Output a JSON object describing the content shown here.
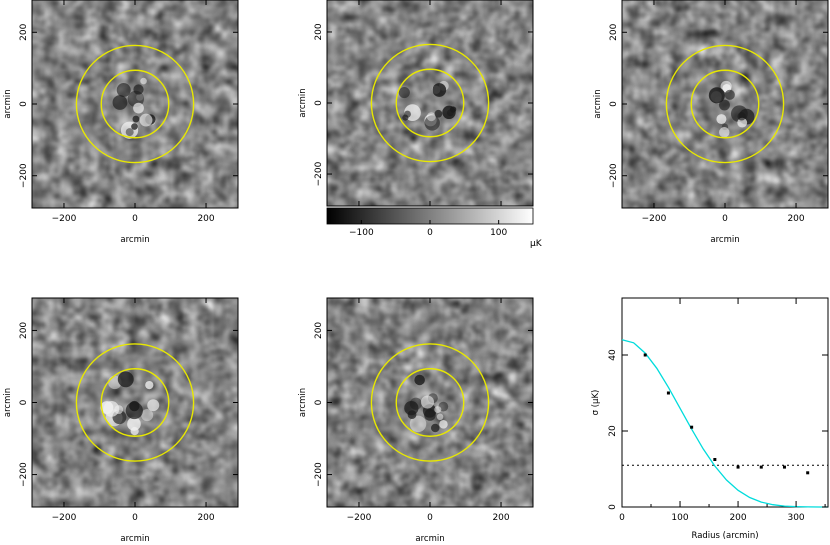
{
  "chart_data": [
    {
      "type": "heatmap",
      "panel": "top-left",
      "xlim": [
        -290,
        290
      ],
      "ylim": [
        -290,
        290
      ],
      "xticks": [
        "−200",
        "0",
        "200"
      ],
      "yticks": [
        "−200",
        "0",
        "200"
      ],
      "xlabel": "arcmin",
      "ylabel": "arcmin",
      "ring_radii_arcmin": [
        95,
        165
      ],
      "ring_color": "#e8e800",
      "seed": 11
    },
    {
      "type": "heatmap",
      "panel": "top-middle",
      "xlim": [
        -290,
        290
      ],
      "ylim": [
        -290,
        290
      ],
      "xticks": [],
      "yticks": [
        "−200",
        "0",
        "200"
      ],
      "xlabel": "",
      "ylabel": "arcmin",
      "ring_radii_arcmin": [
        95,
        165
      ],
      "ring_color": "#e8e800",
      "seed": 23,
      "colorbar": {
        "range": [
          -150,
          150
        ],
        "ticks": [
          "−100",
          "0",
          "100"
        ],
        "unit": "μK"
      }
    },
    {
      "type": "heatmap",
      "panel": "top-right",
      "xlim": [
        -290,
        290
      ],
      "ylim": [
        -290,
        290
      ],
      "xticks": [
        "−200",
        "0",
        "200"
      ],
      "yticks": [
        "−200",
        "0",
        "200"
      ],
      "xlabel": "arcmin",
      "ylabel": "arcmin",
      "ring_radii_arcmin": [
        95,
        165
      ],
      "ring_color": "#e8e800",
      "seed": 37
    },
    {
      "type": "heatmap",
      "panel": "bottom-left",
      "xlim": [
        -290,
        290
      ],
      "ylim": [
        -290,
        290
      ],
      "xticks": [
        "−200",
        "0",
        "200"
      ],
      "yticks": [
        "−200",
        "0",
        "200"
      ],
      "xlabel": "arcmin",
      "ylabel": "arcmin",
      "ring_radii_arcmin": [
        95,
        165
      ],
      "ring_color": "#e8e800",
      "seed": 41
    },
    {
      "type": "heatmap",
      "panel": "bottom-middle",
      "xlim": [
        -290,
        290
      ],
      "ylim": [
        -290,
        290
      ],
      "xticks": [
        "−200",
        "0",
        "200"
      ],
      "yticks": [
        "−200",
        "0",
        "200"
      ],
      "xlabel": "arcmin",
      "ylabel": "arcmin",
      "ring_radii_arcmin": [
        95,
        165
      ],
      "ring_color": "#e8e800",
      "seed": 53
    },
    {
      "type": "scatter",
      "panel": "bottom-right",
      "xlabel": "Radius (arcmin)",
      "ylabel": "σ (μK)",
      "xlim": [
        0,
        355
      ],
      "ylim": [
        0,
        55
      ],
      "xticks": [
        0,
        100,
        200,
        300
      ],
      "yticks": [
        0,
        20,
        40
      ],
      "points": [
        {
          "x": 40,
          "y": 40
        },
        {
          "x": 80,
          "y": 30
        },
        {
          "x": 120,
          "y": 21
        },
        {
          "x": 160,
          "y": 12.5
        },
        {
          "x": 200,
          "y": 10.5
        },
        {
          "x": 240,
          "y": 10.5
        },
        {
          "x": 280,
          "y": 10.5
        },
        {
          "x": 320,
          "y": 9
        }
      ],
      "model_curve": {
        "color": "#00dcdc",
        "x": [
          0,
          20,
          40,
          60,
          80,
          100,
          120,
          140,
          160,
          180,
          200,
          220,
          240,
          260,
          280,
          300,
          320,
          340,
          355
        ],
        "y": [
          44,
          43.2,
          40.5,
          36.5,
          31.5,
          26,
          20.5,
          15.3,
          10.8,
          7.1,
          4.4,
          2.5,
          1.3,
          0.6,
          0.25,
          0.1,
          0.03,
          0.01,
          0
        ]
      },
      "noise_level": {
        "y": 11,
        "style": "dotted"
      }
    }
  ]
}
